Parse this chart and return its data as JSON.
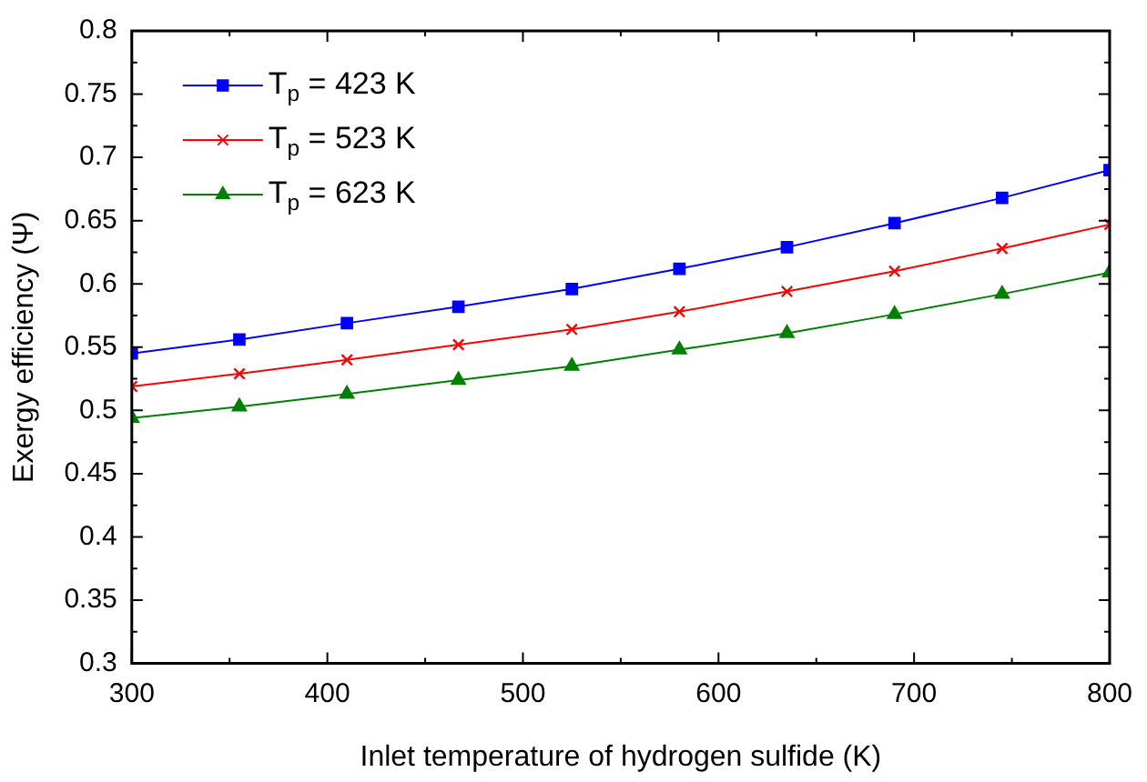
{
  "chart_data": {
    "type": "line",
    "xlabel": "Inlet temperature of hydrogen sulfide (K)",
    "ylabel": "Exergy efficiency (Ψ)",
    "x": [
      300,
      355,
      410,
      467,
      525,
      580,
      635,
      690,
      745,
      800
    ],
    "series": [
      {
        "name": "T$_{p}$ = 423 K",
        "color": "#0000ff",
        "marker": "square",
        "values": [
          0.545,
          0.556,
          0.569,
          0.582,
          0.596,
          0.612,
          0.629,
          0.648,
          0.668,
          0.69
        ]
      },
      {
        "name": "T$_{p}$ = 523 K",
        "color": "#ff0000",
        "marker": "cross",
        "values": [
          0.519,
          0.529,
          0.54,
          0.552,
          0.564,
          0.578,
          0.594,
          0.61,
          0.628,
          0.647
        ]
      },
      {
        "name": "T$_{p}$ = 623 K",
        "color": "#008000",
        "marker": "triangle",
        "values": [
          0.494,
          0.503,
          0.513,
          0.524,
          0.535,
          0.548,
          0.561,
          0.576,
          0.592,
          0.609
        ]
      }
    ],
    "xlim": [
      300,
      800
    ],
    "xticks": [
      300,
      400,
      500,
      600,
      700,
      800
    ],
    "ylim": [
      0.3,
      0.8
    ],
    "yticks": [
      0.3,
      0.35,
      0.4,
      0.45,
      0.5,
      0.55,
      0.6,
      0.65,
      0.7,
      0.75,
      0.8
    ],
    "grid": false,
    "legend": "top left",
    "line_style": "solid"
  }
}
